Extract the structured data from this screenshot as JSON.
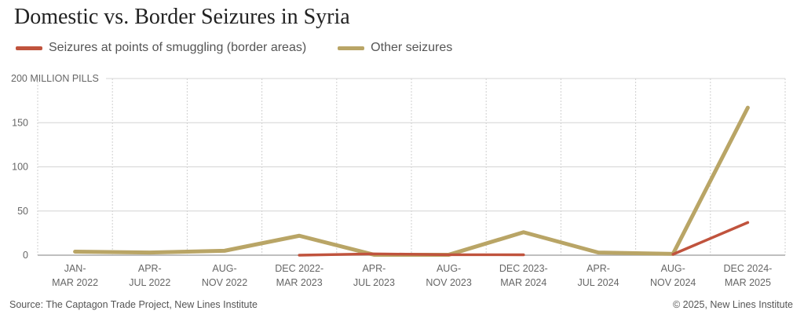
{
  "chart_data": {
    "type": "line",
    "title": "Domestic vs. Border Seizures in Syria",
    "ylabel": "200 MILLION PILLS",
    "ylim": [
      0,
      200
    ],
    "yticks": [
      0,
      50,
      100,
      150,
      200
    ],
    "ytick_labels": [
      "0",
      "50",
      "100",
      "150",
      "200 MILLION PILLS"
    ],
    "grid": true,
    "legend_position": "top-left",
    "categories": [
      [
        "JAN-",
        "MAR 2022"
      ],
      [
        "APR-",
        "JUL 2022"
      ],
      [
        "AUG-",
        "NOV 2022"
      ],
      [
        "DEC 2022-",
        "MAR 2023"
      ],
      [
        "APR-",
        "JUL 2023"
      ],
      [
        "AUG-",
        "NOV 2023"
      ],
      [
        "DEC 2023-",
        "MAR 2024"
      ],
      [
        "APR-",
        "JUL 2024"
      ],
      [
        "AUG-",
        "NOV 2024"
      ],
      [
        "DEC 2024-",
        "MAR 2025"
      ]
    ],
    "series": [
      {
        "name": "Seizures at points of smuggling (border areas)",
        "color": "#c0533d",
        "values": [
          null,
          null,
          null,
          0,
          1.5,
          0.5,
          0.5,
          null,
          1,
          37
        ]
      },
      {
        "name": "Other seizures",
        "color": "#b9a566",
        "values": [
          4,
          3,
          5,
          22,
          0.5,
          0.5,
          26,
          3,
          1.5,
          167
        ]
      }
    ]
  },
  "footer": {
    "source": "Source: The Captagon Trade Project, New Lines Institute",
    "copyright": "© 2025, New Lines Institute"
  }
}
